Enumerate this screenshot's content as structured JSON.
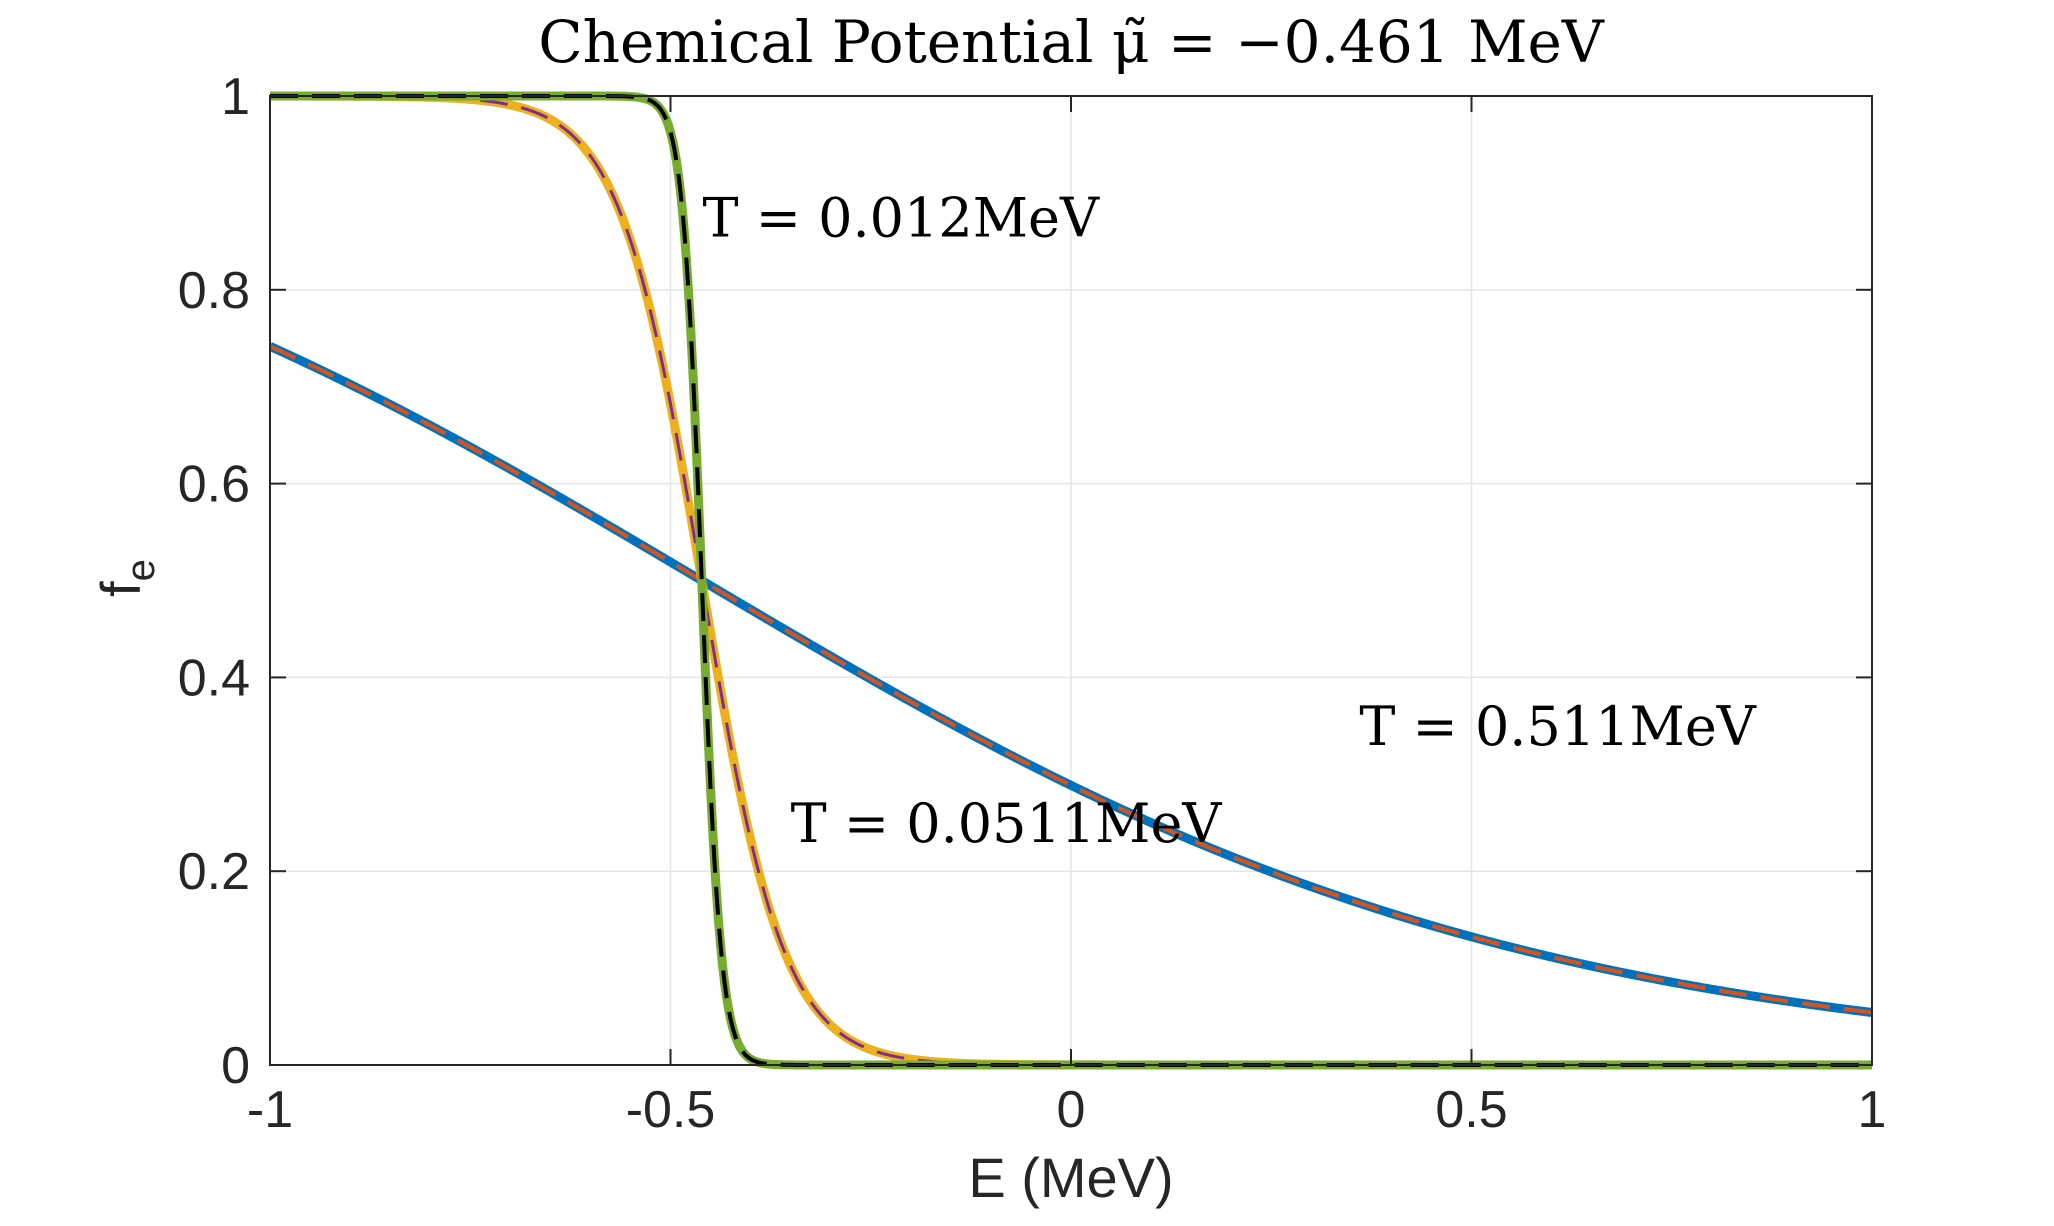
{
  "chart_data": {
    "type": "line",
    "title": "Chemical Potential μ̃ = −0.461 MeV",
    "xlabel": "E (MeV)",
    "ylabel": "f",
    "ylabel_sub": "e",
    "xlim": [
      -1,
      1
    ],
    "ylim": [
      0,
      1
    ],
    "xticks": [
      -1,
      -0.5,
      0,
      0.5,
      1
    ],
    "xtick_labels": [
      "-1",
      "-0.5",
      "0",
      "0.5",
      "1"
    ],
    "yticks": [
      0,
      0.2,
      0.4,
      0.6,
      0.8,
      1
    ],
    "ytick_labels": [
      "0",
      "0.2",
      "0.4",
      "0.6",
      "0.8",
      "1"
    ],
    "grid": true,
    "mu": -0.461,
    "series": [
      {
        "T": 0.511,
        "color": "#0072BD",
        "style": "solid",
        "width": 9
      },
      {
        "T": 0.511,
        "color": "#D95319",
        "style": "dashed",
        "width": 4
      },
      {
        "T": 0.0511,
        "color": "#EDB120",
        "style": "solid",
        "width": 9
      },
      {
        "T": 0.0511,
        "color": "#7E2F8E",
        "style": "dashed",
        "width": 3
      },
      {
        "T": 0.012,
        "color": "#77AC30",
        "style": "solid",
        "width": 9
      },
      {
        "T": 0.012,
        "color": "#000000",
        "style": "dashed",
        "width": 4
      }
    ],
    "annotations": [
      {
        "text": "T = 0.012MeV",
        "x": -0.46,
        "y": 0.855
      },
      {
        "text": "T = 0.0511MeV",
        "x": -0.35,
        "y": 0.23
      },
      {
        "text": "T = 0.511MeV",
        "x": 0.36,
        "y": 0.33
      }
    ]
  }
}
